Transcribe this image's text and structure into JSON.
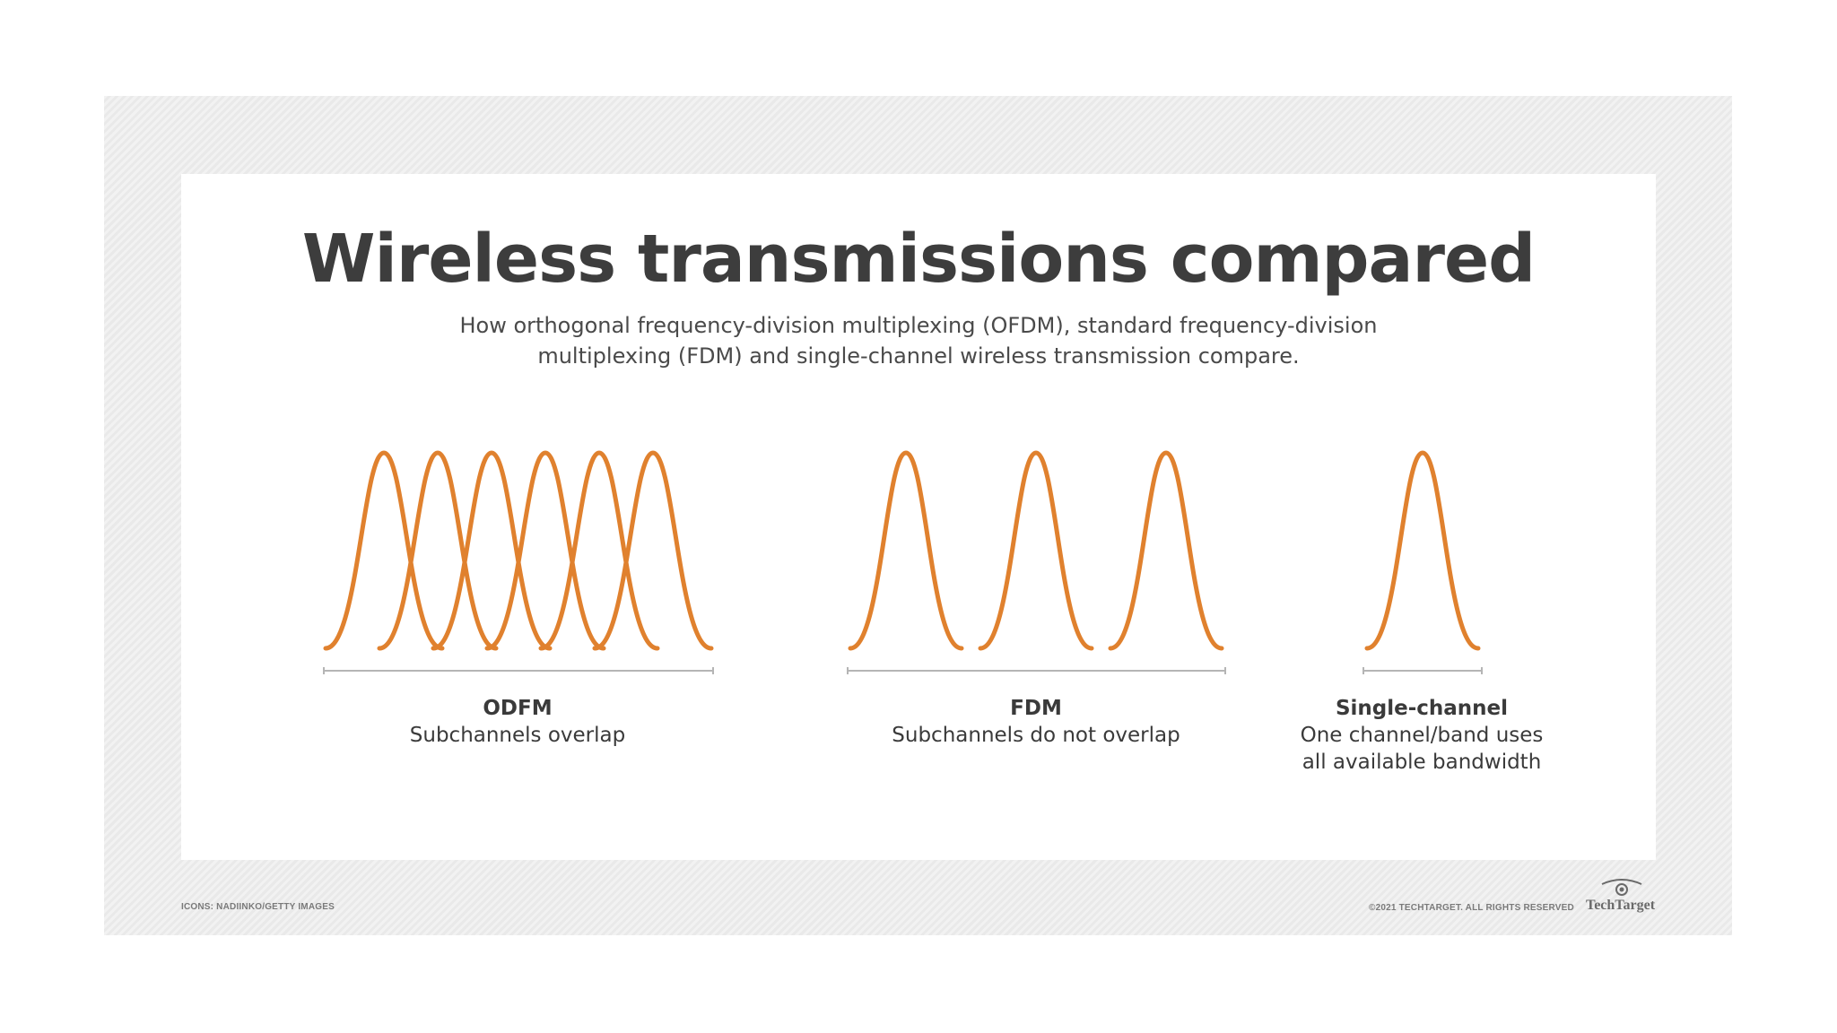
{
  "title": "Wireless transmissions compared",
  "subtitle_line1": "How orthogonal frequency-division multiplexing (OFDM), standard frequency-division",
  "subtitle_line2": "multiplexing (FDM) and single-channel wireless transmission compare.",
  "diagrams": [
    {
      "name": "ODFM",
      "description_lines": [
        "Subchannels overlap"
      ],
      "subchannel_count": 6,
      "overlap": true
    },
    {
      "name": "FDM",
      "description_lines": [
        "Subchannels do not overlap"
      ],
      "subchannel_count": 3,
      "overlap": false
    },
    {
      "name": "Single-channel",
      "description_lines": [
        "One channel/band uses",
        "all available bandwidth"
      ],
      "subchannel_count": 1,
      "overlap": false
    }
  ],
  "footer": {
    "icons_credit": "ICONS: NADIINKO/GETTY IMAGES",
    "copyright": "©2021 TECHTARGET. ALL RIGHTS RESERVED",
    "logo_text": "TechTarget"
  },
  "colors": {
    "curve": "#e0812e",
    "title": "#3d3d3d",
    "axis": "#b5b5b5"
  }
}
